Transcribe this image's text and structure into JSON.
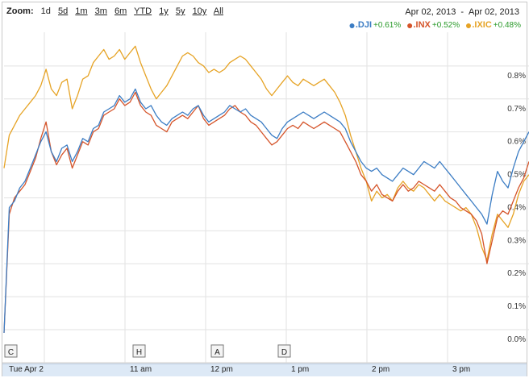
{
  "zoom": {
    "label": "Zoom:",
    "options": [
      "1d",
      "5d",
      "1m",
      "3m",
      "6m",
      "YTD",
      "1y",
      "5y",
      "10y",
      "All"
    ]
  },
  "date_range": {
    "from": "Apr 02, 2013",
    "separator": "-",
    "to": "Apr 02, 2013"
  },
  "legend": [
    {
      "symbol": ".DJI",
      "change": "+0.61%",
      "color": "#3c7dc4"
    },
    {
      "symbol": ".INX",
      "change": "+0.52%",
      "color": "#d5542a"
    },
    {
      "symbol": ".IXIC",
      "change": "+0.48%",
      "color": "#e6a325"
    }
  ],
  "markers": [
    "C",
    "H",
    "A",
    "D"
  ],
  "timeline": [
    "Tue Apr 2",
    "11 am",
    "12 pm",
    "1 pm",
    "2 pm",
    "3 pm"
  ],
  "chart_data": {
    "type": "line",
    "y_tick_labels": [
      "0.0%",
      "0.1%",
      "0.2%",
      "0.3%",
      "0.4%",
      "0.5%",
      "0.6%",
      "0.7%",
      "0.8%"
    ],
    "ylim": [
      0,
      0.9
    ],
    "xlim": [
      0,
      100
    ],
    "grid": true,
    "legend_position": "top-right",
    "series": [
      {
        "name": ".DJI",
        "color": "#3c7dc4",
        "x": [
          0,
          1,
          2,
          3,
          4,
          5,
          6,
          7,
          8,
          9,
          10,
          11,
          12,
          13,
          14,
          15,
          16,
          17,
          18,
          19,
          20,
          21,
          22,
          23,
          24,
          25,
          26,
          27,
          28,
          29,
          30,
          31,
          32,
          33,
          34,
          35,
          36,
          37,
          38,
          39,
          40,
          41,
          42,
          43,
          44,
          45,
          46,
          47,
          48,
          49,
          50,
          51,
          52,
          53,
          54,
          55,
          56,
          57,
          58,
          59,
          60,
          61,
          62,
          63,
          64,
          65,
          66,
          67,
          68,
          69,
          70,
          71,
          72,
          73,
          74,
          75,
          76,
          77,
          78,
          79,
          80,
          81,
          82,
          83,
          84,
          85,
          86,
          87,
          88,
          89,
          90,
          91,
          92,
          93,
          94,
          95,
          96,
          97,
          98,
          99,
          100
        ],
        "y": [
          0.0,
          0.38,
          0.4,
          0.44,
          0.46,
          0.5,
          0.54,
          0.58,
          0.61,
          0.55,
          0.52,
          0.56,
          0.57,
          0.52,
          0.55,
          0.59,
          0.58,
          0.62,
          0.63,
          0.67,
          0.68,
          0.69,
          0.72,
          0.7,
          0.71,
          0.74,
          0.7,
          0.68,
          0.69,
          0.66,
          0.64,
          0.63,
          0.65,
          0.66,
          0.67,
          0.66,
          0.68,
          0.69,
          0.66,
          0.64,
          0.65,
          0.66,
          0.67,
          0.69,
          0.68,
          0.67,
          0.68,
          0.66,
          0.65,
          0.64,
          0.62,
          0.6,
          0.59,
          0.62,
          0.64,
          0.65,
          0.66,
          0.67,
          0.66,
          0.65,
          0.66,
          0.67,
          0.66,
          0.65,
          0.64,
          0.62,
          0.58,
          0.55,
          0.52,
          0.5,
          0.49,
          0.5,
          0.48,
          0.47,
          0.46,
          0.48,
          0.5,
          0.49,
          0.48,
          0.5,
          0.52,
          0.51,
          0.5,
          0.52,
          0.5,
          0.48,
          0.46,
          0.44,
          0.42,
          0.4,
          0.38,
          0.36,
          0.33,
          0.42,
          0.49,
          0.46,
          0.44,
          0.5,
          0.55,
          0.58,
          0.61
        ]
      },
      {
        "name": ".INX",
        "color": "#d5542a",
        "x": [
          0,
          1,
          2,
          3,
          4,
          5,
          6,
          7,
          8,
          9,
          10,
          11,
          12,
          13,
          14,
          15,
          16,
          17,
          18,
          19,
          20,
          21,
          22,
          23,
          24,
          25,
          26,
          27,
          28,
          29,
          30,
          31,
          32,
          33,
          34,
          35,
          36,
          37,
          38,
          39,
          40,
          41,
          42,
          43,
          44,
          45,
          46,
          47,
          48,
          49,
          50,
          51,
          52,
          53,
          54,
          55,
          56,
          57,
          58,
          59,
          60,
          61,
          62,
          63,
          64,
          65,
          66,
          67,
          68,
          69,
          70,
          71,
          72,
          73,
          74,
          75,
          76,
          77,
          78,
          79,
          80,
          81,
          82,
          83,
          84,
          85,
          86,
          87,
          88,
          89,
          90,
          91,
          92,
          93,
          94,
          95,
          96,
          97,
          98,
          99,
          100
        ],
        "y": [
          0.0,
          0.36,
          0.41,
          0.43,
          0.45,
          0.49,
          0.53,
          0.59,
          0.64,
          0.55,
          0.51,
          0.54,
          0.56,
          0.5,
          0.54,
          0.58,
          0.57,
          0.61,
          0.62,
          0.66,
          0.67,
          0.68,
          0.71,
          0.69,
          0.7,
          0.73,
          0.69,
          0.67,
          0.66,
          0.63,
          0.62,
          0.61,
          0.64,
          0.65,
          0.66,
          0.65,
          0.67,
          0.69,
          0.65,
          0.63,
          0.64,
          0.65,
          0.66,
          0.68,
          0.69,
          0.67,
          0.66,
          0.64,
          0.63,
          0.61,
          0.59,
          0.57,
          0.58,
          0.6,
          0.62,
          0.63,
          0.62,
          0.64,
          0.63,
          0.62,
          0.63,
          0.64,
          0.63,
          0.62,
          0.61,
          0.58,
          0.55,
          0.52,
          0.48,
          0.46,
          0.43,
          0.45,
          0.42,
          0.41,
          0.4,
          0.43,
          0.45,
          0.43,
          0.44,
          0.46,
          0.45,
          0.44,
          0.43,
          0.45,
          0.43,
          0.41,
          0.4,
          0.38,
          0.37,
          0.36,
          0.34,
          0.3,
          0.21,
          0.28,
          0.35,
          0.37,
          0.36,
          0.4,
          0.44,
          0.47,
          0.52
        ]
      },
      {
        "name": ".IXIC",
        "color": "#e6a325",
        "x": [
          0,
          1,
          2,
          3,
          4,
          5,
          6,
          7,
          8,
          9,
          10,
          11,
          12,
          13,
          14,
          15,
          16,
          17,
          18,
          19,
          20,
          21,
          22,
          23,
          24,
          25,
          26,
          27,
          28,
          29,
          30,
          31,
          32,
          33,
          34,
          35,
          36,
          37,
          38,
          39,
          40,
          41,
          42,
          43,
          44,
          45,
          46,
          47,
          48,
          49,
          50,
          51,
          52,
          53,
          54,
          55,
          56,
          57,
          58,
          59,
          60,
          61,
          62,
          63,
          64,
          65,
          66,
          67,
          68,
          69,
          70,
          71,
          72,
          73,
          74,
          75,
          76,
          77,
          78,
          79,
          80,
          81,
          82,
          83,
          84,
          85,
          86,
          87,
          88,
          89,
          90,
          91,
          92,
          93,
          94,
          95,
          96,
          97,
          98,
          99,
          100
        ],
        "y": [
          0.5,
          0.6,
          0.63,
          0.66,
          0.68,
          0.7,
          0.72,
          0.75,
          0.8,
          0.74,
          0.72,
          0.76,
          0.77,
          0.68,
          0.72,
          0.77,
          0.78,
          0.82,
          0.84,
          0.86,
          0.83,
          0.84,
          0.86,
          0.83,
          0.85,
          0.87,
          0.82,
          0.78,
          0.74,
          0.71,
          0.73,
          0.75,
          0.78,
          0.81,
          0.84,
          0.85,
          0.84,
          0.82,
          0.81,
          0.79,
          0.8,
          0.79,
          0.8,
          0.82,
          0.83,
          0.84,
          0.83,
          0.81,
          0.79,
          0.77,
          0.74,
          0.72,
          0.74,
          0.76,
          0.78,
          0.76,
          0.75,
          0.77,
          0.76,
          0.75,
          0.76,
          0.77,
          0.75,
          0.73,
          0.7,
          0.66,
          0.6,
          0.55,
          0.5,
          0.46,
          0.4,
          0.43,
          0.41,
          0.42,
          0.4,
          0.44,
          0.46,
          0.44,
          0.43,
          0.45,
          0.44,
          0.42,
          0.4,
          0.42,
          0.4,
          0.39,
          0.38,
          0.37,
          0.38,
          0.36,
          0.32,
          0.26,
          0.22,
          0.3,
          0.36,
          0.34,
          0.32,
          0.36,
          0.42,
          0.46,
          0.48
        ]
      }
    ]
  }
}
